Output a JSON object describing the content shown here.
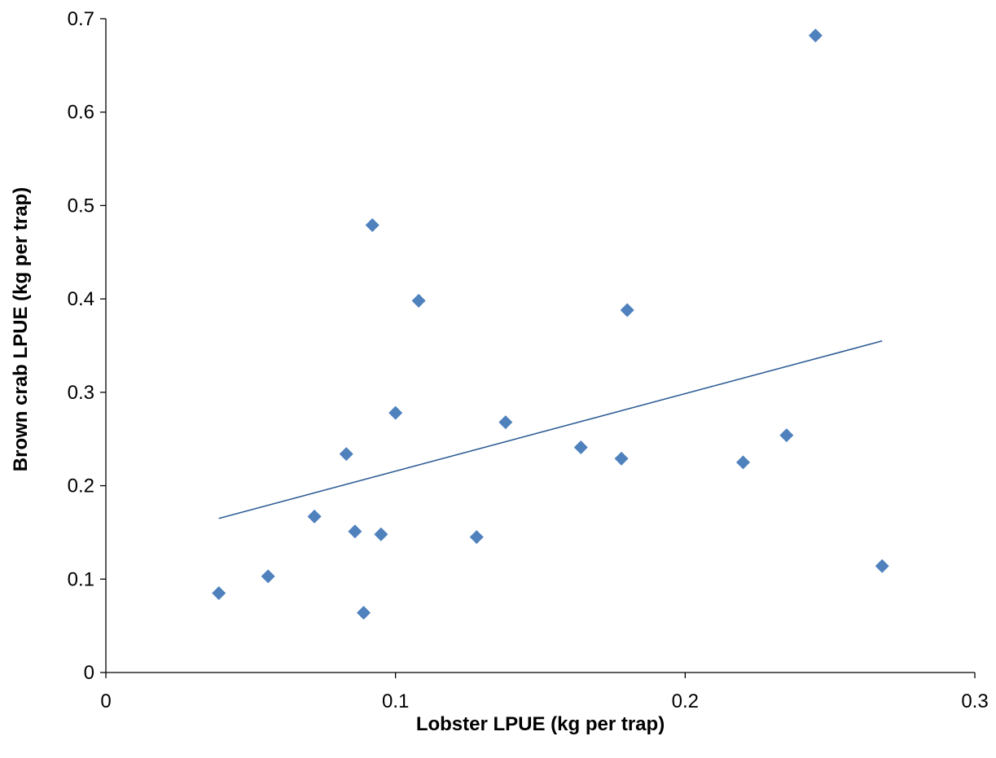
{
  "chart_data": {
    "type": "scatter",
    "title": "",
    "xlabel": "Lobster LPUE (kg per trap)",
    "ylabel": "Brown crab LPUE (kg per trap)",
    "xlim": [
      0,
      0.3
    ],
    "ylim": [
      0,
      0.7
    ],
    "x_ticks": [
      "0",
      "0.1",
      "0.2",
      "0.3"
    ],
    "y_ticks": [
      "0",
      "0.1",
      "0.2",
      "0.3",
      "0.4",
      "0.5",
      "0.6",
      "0.7"
    ],
    "x_tick_values": [
      0,
      0.1,
      0.2,
      0.3
    ],
    "y_tick_values": [
      0,
      0.1,
      0.2,
      0.3,
      0.4,
      0.5,
      0.6,
      0.7
    ],
    "grid": false,
    "legend": "none",
    "marker": "diamond",
    "marker_color": "#4f81bd",
    "trendline_color": "#2f5d95",
    "series": [
      {
        "points": [
          {
            "x": 0.039,
            "y": 0.085
          },
          {
            "x": 0.056,
            "y": 0.103
          },
          {
            "x": 0.072,
            "y": 0.167
          },
          {
            "x": 0.083,
            "y": 0.234
          },
          {
            "x": 0.086,
            "y": 0.151
          },
          {
            "x": 0.089,
            "y": 0.064
          },
          {
            "x": 0.092,
            "y": 0.479
          },
          {
            "x": 0.095,
            "y": 0.148
          },
          {
            "x": 0.1,
            "y": 0.278
          },
          {
            "x": 0.108,
            "y": 0.398
          },
          {
            "x": 0.128,
            "y": 0.145
          },
          {
            "x": 0.138,
            "y": 0.268
          },
          {
            "x": 0.164,
            "y": 0.241
          },
          {
            "x": 0.178,
            "y": 0.229
          },
          {
            "x": 0.18,
            "y": 0.388
          },
          {
            "x": 0.22,
            "y": 0.225
          },
          {
            "x": 0.235,
            "y": 0.254
          },
          {
            "x": 0.245,
            "y": 0.682
          },
          {
            "x": 0.268,
            "y": 0.114
          }
        ]
      }
    ],
    "trendline": {
      "type": "linear",
      "start": {
        "x": 0.039,
        "y": 0.165
      },
      "end": {
        "x": 0.268,
        "y": 0.355
      }
    }
  }
}
